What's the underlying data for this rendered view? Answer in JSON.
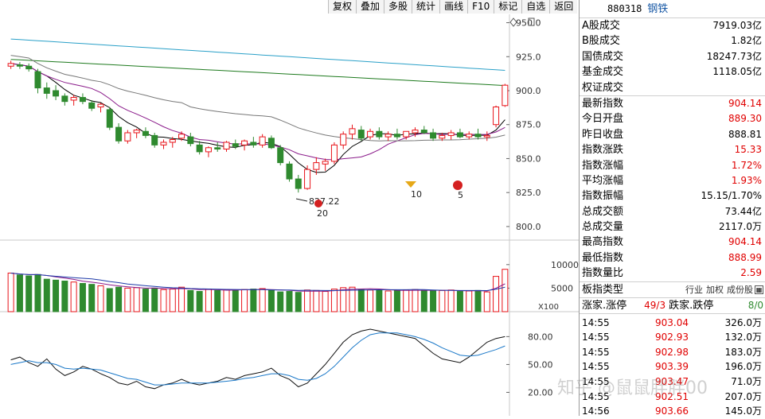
{
  "toolbar": [
    "复权",
    "叠加",
    "多股",
    "统计",
    "画线",
    "F10",
    "标记",
    "自选",
    "返回"
  ],
  "stock": {
    "code": "880318",
    "name": "钢铁"
  },
  "stats": [
    {
      "label": "A股成交",
      "value": "7919.03亿",
      "color": "black"
    },
    {
      "label": "B股成交",
      "value": "1.82亿",
      "color": "black"
    },
    {
      "label": "国债成交",
      "value": "18247.73亿",
      "color": "black"
    },
    {
      "label": "基金成交",
      "value": "1118.05亿",
      "color": "black"
    },
    {
      "label": "权证成交",
      "value": "",
      "color": "black"
    }
  ],
  "quotes": [
    {
      "label": "最新指数",
      "value": "904.14",
      "color": "red"
    },
    {
      "label": "今日开盘",
      "value": "889.30",
      "color": "red"
    },
    {
      "label": "昨日收盘",
      "value": "888.81",
      "color": "black"
    },
    {
      "label": "指数涨跌",
      "value": "15.33",
      "color": "red"
    },
    {
      "label": "指数涨幅",
      "value": "1.72%",
      "color": "red"
    },
    {
      "label": "平均涨幅",
      "value": "1.93%",
      "color": "red"
    },
    {
      "label": "指数振幅",
      "value": "15.15/1.70%",
      "color": "black"
    },
    {
      "label": "总成交额",
      "value": "73.44亿",
      "color": "black"
    },
    {
      "label": "总成交量",
      "value": "2117.0万",
      "color": "black"
    },
    {
      "label": "最高指数",
      "value": "904.14",
      "color": "red"
    },
    {
      "label": "最低指数",
      "value": "888.99",
      "color": "red"
    },
    {
      "label": "指数量比",
      "value": "2.59",
      "color": "red"
    }
  ],
  "type_row": {
    "label": "板指类型",
    "seg1": "行业",
    "seg2": "加权",
    "seg3": "成份股"
  },
  "breadth": {
    "up_label": "涨家.涨停",
    "up_value": "49/3",
    "down_label": "跌家.跌停",
    "down_value": "8/0"
  },
  "ticks": [
    {
      "time": "14:55",
      "price": "903.04",
      "vol": "326.0万"
    },
    {
      "time": "14:55",
      "price": "902.93",
      "vol": "132.0万"
    },
    {
      "time": "14:55",
      "price": "902.98",
      "vol": "183.0万"
    },
    {
      "time": "14:55",
      "price": "903.39",
      "vol": "196.0万"
    },
    {
      "time": "14:55",
      "price": "903.47",
      "vol": "71.0万"
    },
    {
      "time": "14:55",
      "price": "902.51",
      "vol": "207.0万"
    },
    {
      "time": "14:56",
      "price": "903.66",
      "vol": "145.0万"
    }
  ],
  "axis": {
    "price_ticks": [
      "950.0",
      "925.0",
      "900.0",
      "875.0",
      "850.0",
      "825.0",
      "800.0"
    ],
    "vol_ticks": [
      "10000",
      "5000"
    ],
    "vol_unit": "X100",
    "kdj_ticks": [
      "80.00",
      "50.00",
      "20.00"
    ]
  },
  "annotations": {
    "low_label": "827.22",
    "marker_20": "20",
    "marker_10": "10",
    "marker_5": "5"
  },
  "watermark": "知乎 @鼠鼠胖胖00",
  "colors": {
    "up": "#e8141a",
    "down": "#2f8a2f",
    "ma1": "#000000",
    "ma2": "#8a1a8a",
    "ma3": "#2aa0c8",
    "ma4": "#1e7a1e",
    "ma5": "#777777"
  },
  "chart_data": {
    "type": "candlestick",
    "ylim": [
      790,
      955
    ],
    "candles": [
      [
        918,
        922,
        916,
        920
      ],
      [
        919,
        921,
        916,
        918
      ],
      [
        918,
        920,
        914,
        916
      ],
      [
        914,
        916,
        898,
        902
      ],
      [
        902,
        906,
        894,
        898
      ],
      [
        900,
        904,
        893,
        896
      ],
      [
        896,
        898,
        889,
        892
      ],
      [
        893,
        897,
        889,
        895
      ],
      [
        895,
        898,
        890,
        892
      ],
      [
        891,
        893,
        885,
        887
      ],
      [
        888,
        891,
        884,
        890
      ],
      [
        886,
        888,
        871,
        873
      ],
      [
        873,
        876,
        861,
        863
      ],
      [
        863,
        871,
        861,
        869
      ],
      [
        869,
        872,
        865,
        871
      ],
      [
        870,
        873,
        865,
        867
      ],
      [
        867,
        869,
        858,
        860
      ],
      [
        860,
        864,
        857,
        862
      ],
      [
        862,
        866,
        858,
        864
      ],
      [
        865,
        870,
        863,
        868
      ],
      [
        866,
        869,
        859,
        861
      ],
      [
        860,
        863,
        853,
        855
      ],
      [
        855,
        859,
        851,
        858
      ],
      [
        858,
        862,
        855,
        857
      ],
      [
        857,
        863,
        855,
        862
      ],
      [
        861,
        864,
        857,
        859
      ],
      [
        860,
        864,
        856,
        863
      ],
      [
        862,
        866,
        858,
        860
      ],
      [
        860,
        868,
        858,
        866
      ],
      [
        865,
        867,
        857,
        858
      ],
      [
        858,
        860,
        845,
        847
      ],
      [
        846,
        848,
        833,
        835
      ],
      [
        835,
        838,
        825,
        828
      ],
      [
        828,
        845,
        827,
        842
      ],
      [
        842,
        851,
        838,
        847
      ],
      [
        846,
        850,
        841,
        848
      ],
      [
        848,
        862,
        846,
        860
      ],
      [
        860,
        870,
        857,
        868
      ],
      [
        868,
        875,
        864,
        872
      ],
      [
        871,
        874,
        863,
        865
      ],
      [
        866,
        872,
        864,
        870
      ],
      [
        870,
        873,
        864,
        866
      ],
      [
        866,
        870,
        863,
        868
      ],
      [
        868,
        872,
        864,
        866
      ],
      [
        866,
        870,
        864,
        870
      ],
      [
        869,
        873,
        866,
        871
      ],
      [
        871,
        874,
        868,
        869
      ],
      [
        869,
        872,
        863,
        865
      ],
      [
        865,
        869,
        863,
        867
      ],
      [
        867,
        871,
        864,
        869
      ],
      [
        869,
        872,
        865,
        866
      ],
      [
        866,
        870,
        864,
        868
      ],
      [
        868,
        872,
        864,
        866
      ],
      [
        866,
        870,
        863,
        867
      ],
      [
        875,
        889,
        873,
        888
      ],
      [
        889,
        905,
        888,
        904
      ]
    ],
    "volume": [
      8200,
      7800,
      7600,
      7900,
      6900,
      6700,
      6500,
      6300,
      6000,
      5800,
      5500,
      4900,
      5200,
      5000,
      5100,
      4800,
      5000,
      4700,
      4800,
      5200,
      4500,
      4300,
      4800,
      4500,
      4700,
      4600,
      4700,
      4800,
      4900,
      4500,
      4200,
      4300,
      4100,
      4600,
      4500,
      4300,
      4800,
      5100,
      5200,
      4700,
      4600,
      4500,
      4400,
      4500,
      4600,
      4700,
      4500,
      4400,
      4500,
      4600,
      4300,
      4400,
      4500,
      4200,
      7500,
      9000
    ],
    "kdj_k": [
      55,
      58,
      52,
      48,
      56,
      45,
      38,
      42,
      48,
      45,
      40,
      36,
      30,
      28,
      32,
      26,
      24,
      28,
      30,
      34,
      30,
      28,
      30,
      32,
      36,
      34,
      38,
      40,
      42,
      46,
      38,
      34,
      26,
      30,
      40,
      50,
      62,
      74,
      82,
      86,
      88,
      86,
      84,
      82,
      80,
      78,
      70,
      62,
      56,
      54,
      52,
      58,
      66,
      74,
      78,
      80
    ],
    "kdj_d": [
      50,
      52,
      54,
      52,
      52,
      50,
      46,
      45,
      46,
      45,
      44,
      41,
      38,
      35,
      34,
      31,
      28,
      28,
      29,
      30,
      30,
      30,
      30,
      31,
      32,
      33,
      35,
      36,
      38,
      40,
      40,
      38,
      34,
      33,
      35,
      40,
      48,
      58,
      68,
      76,
      82,
      84,
      84,
      84,
      82,
      80,
      77,
      73,
      68,
      64,
      60,
      59,
      60,
      63,
      66,
      70
    ]
  }
}
